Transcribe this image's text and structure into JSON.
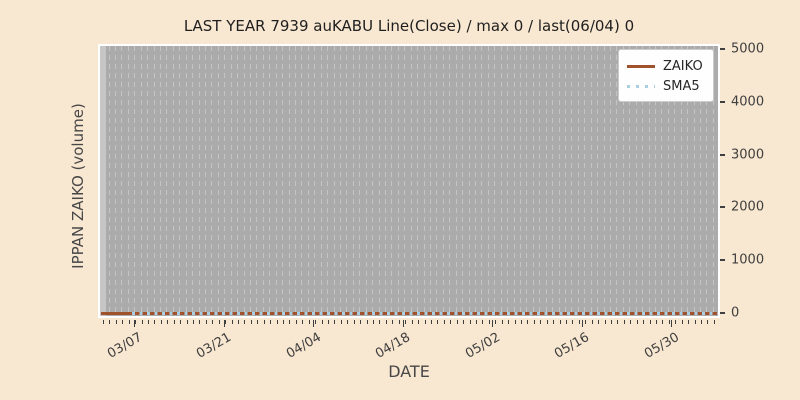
{
  "figure": {
    "title": "LAST YEAR 7939 auKABU Line(Close) / max 0 / last(06/04) 0",
    "xlabel": "DATE",
    "ylabel": "IPPAN ZAIKO (volume)"
  },
  "legend": {
    "items": [
      {
        "label": "ZAIKO",
        "style": "solid",
        "color": "#a0522d"
      },
      {
        "label": "SMA5",
        "style": "dotted",
        "color": "#a9cfe3"
      }
    ]
  },
  "chart_data": {
    "type": "line",
    "title": "LAST YEAR 7939 auKABU Line(Close) / max 0 / last(06/04) 0",
    "xlabel": "DATE",
    "ylabel": "IPPAN ZAIKO (volume)",
    "x_tick_labels": [
      "03/07",
      "03/21",
      "04/04",
      "04/18",
      "05/02",
      "05/16",
      "05/30"
    ],
    "y_tick_labels": [
      "0",
      "1000",
      "2000",
      "3000",
      "4000",
      "5000"
    ],
    "ylim": [
      0,
      5000
    ],
    "grid": "vertical-dashed-daily",
    "legend_position": "upper-right",
    "series": [
      {
        "name": "ZAIKO",
        "line": "solid",
        "color": "#a0522d",
        "x": [
          "03/07",
          "03/21",
          "04/04",
          "04/18",
          "05/02",
          "05/16",
          "05/30"
        ],
        "values": [
          0,
          0,
          0,
          0,
          0,
          0,
          0
        ]
      },
      {
        "name": "SMA5",
        "line": "dotted",
        "color": "#a9cfe3",
        "x": [
          "03/07",
          "03/21",
          "04/04",
          "04/18",
          "05/02",
          "05/16",
          "05/30"
        ],
        "values": [
          0,
          0,
          0,
          0,
          0,
          0,
          0
        ]
      }
    ],
    "stats_from_title": {
      "max": 0,
      "last_date": "06/04",
      "last_value": 0
    }
  },
  "colors": {
    "figure_bg": "#f8e7d1",
    "plot_bg": "#ababab",
    "grid_line": "#c4c4c4",
    "zaiko_line": "#a0522d",
    "sma5_line": "#a9cfe3",
    "tick_text": "#3f3f3f"
  }
}
